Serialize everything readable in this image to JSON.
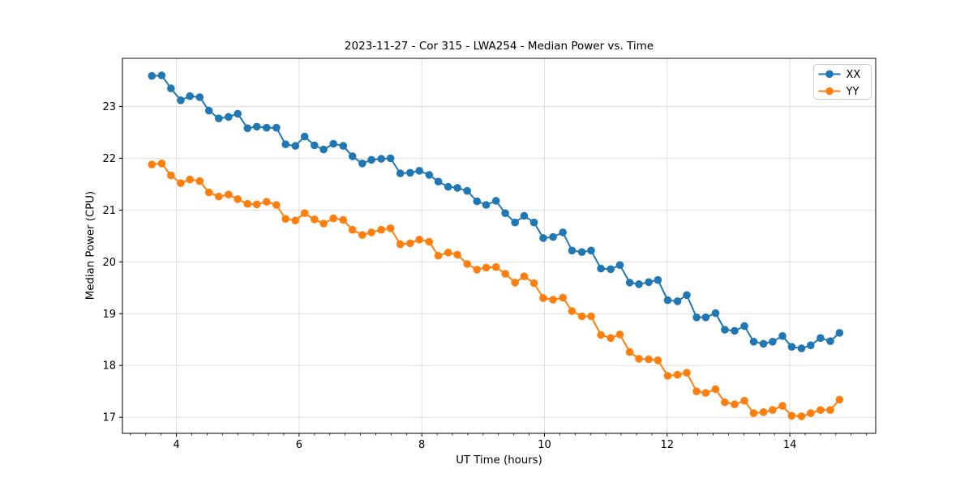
{
  "chart_data": {
    "type": "line",
    "title": "2023-11-27 - Cor 315 - LWA254 - Median Power vs. Time",
    "xlabel": "UT Time (hours)",
    "ylabel": "Median Power (CPU)",
    "xlim": [
      3.12,
      15.4
    ],
    "ylim": [
      16.69,
      23.93
    ],
    "x_major_ticks": [
      4,
      6,
      8,
      10,
      12,
      14
    ],
    "x_minor_step": 0.25,
    "y_major_ticks": [
      17,
      18,
      19,
      20,
      21,
      22,
      23
    ],
    "grid": true,
    "legend_position": "upper right",
    "x": [
      3.6,
      3.76,
      3.91,
      4.07,
      4.22,
      4.38,
      4.53,
      4.69,
      4.85,
      5.0,
      5.16,
      5.31,
      5.47,
      5.63,
      5.78,
      5.94,
      6.09,
      6.25,
      6.4,
      6.56,
      6.72,
      6.87,
      7.03,
      7.18,
      7.34,
      7.49,
      7.65,
      7.81,
      7.96,
      8.12,
      8.27,
      8.43,
      8.58,
      8.74,
      8.9,
      9.05,
      9.21,
      9.36,
      9.52,
      9.67,
      9.83,
      9.98,
      10.14,
      10.3,
      10.45,
      10.61,
      10.76,
      10.92,
      11.08,
      11.23,
      11.39,
      11.54,
      11.7,
      11.85,
      12.01,
      12.17,
      12.32,
      12.48,
      12.63,
      12.79,
      12.94,
      13.1,
      13.26,
      13.41,
      13.57,
      13.72,
      13.88,
      14.03,
      14.19,
      14.34,
      14.5,
      14.66,
      14.81
    ],
    "series": [
      {
        "name": "XX",
        "color": "#1f77b4",
        "values": [
          23.59,
          23.6,
          23.35,
          23.12,
          23.2,
          23.18,
          22.92,
          22.77,
          22.8,
          22.86,
          22.58,
          22.61,
          22.59,
          22.59,
          22.27,
          22.24,
          22.42,
          22.25,
          22.17,
          22.28,
          22.24,
          22.04,
          21.9,
          21.97,
          21.99,
          22.0,
          21.71,
          21.72,
          21.76,
          21.68,
          21.55,
          21.45,
          21.43,
          21.37,
          21.17,
          21.1,
          21.18,
          20.94,
          20.76,
          20.89,
          20.76,
          20.46,
          20.48,
          20.57,
          20.22,
          20.19,
          20.22,
          19.87,
          19.86,
          19.94,
          19.6,
          19.57,
          19.61,
          19.65,
          19.26,
          19.24,
          19.36,
          18.93,
          18.93,
          19.01,
          18.69,
          18.67,
          18.76,
          18.46,
          18.42,
          18.46,
          18.57,
          18.36,
          18.33,
          18.39,
          18.53,
          18.47,
          18.63
        ]
      },
      {
        "name": "YY",
        "color": "#ff7f0e",
        "values": [
          21.88,
          21.9,
          21.67,
          21.52,
          21.59,
          21.56,
          21.34,
          21.26,
          21.3,
          21.21,
          21.12,
          21.11,
          21.16,
          21.1,
          20.83,
          20.8,
          20.94,
          20.82,
          20.74,
          20.84,
          20.81,
          20.62,
          20.52,
          20.57,
          20.62,
          20.65,
          20.34,
          20.36,
          20.43,
          20.39,
          20.12,
          20.18,
          20.14,
          19.96,
          19.85,
          19.89,
          19.9,
          19.77,
          19.6,
          19.72,
          19.59,
          19.3,
          19.27,
          19.31,
          19.05,
          18.95,
          18.95,
          18.59,
          18.53,
          18.6,
          18.26,
          18.13,
          18.12,
          18.1,
          17.8,
          17.82,
          17.86,
          17.5,
          17.47,
          17.54,
          17.29,
          17.25,
          17.32,
          17.08,
          17.1,
          17.14,
          17.22,
          17.03,
          17.02,
          17.08,
          17.14,
          17.14,
          17.34
        ]
      }
    ]
  },
  "colors": {
    "background": "#ffffff",
    "grid": "#dcdcdc",
    "spine": "#000000",
    "text": "#000000",
    "legend_border": "#cccccc",
    "series_xx": "#1f77b4",
    "series_yy": "#ff7f0e"
  }
}
